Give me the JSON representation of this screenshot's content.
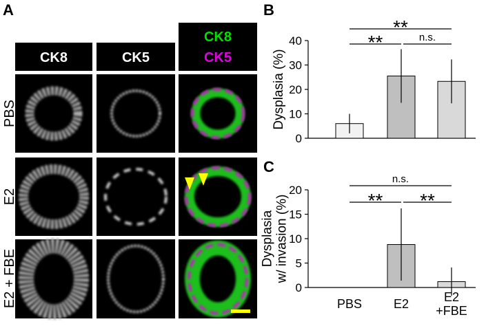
{
  "panel_a": {
    "label": "A",
    "columns": [
      "CK8",
      "CK5"
    ],
    "merge": [
      "CK8",
      "CK5"
    ],
    "rows": [
      "PBS",
      "E2",
      "E2 + FBE"
    ]
  },
  "chart_data": [
    {
      "type": "bar",
      "label": "B",
      "ylabel": "Dysplasia (%)",
      "categories": [
        null,
        null,
        null
      ],
      "values": [
        6,
        25.5,
        23.3
      ],
      "errors": [
        4,
        11,
        9
      ],
      "colors": [
        "#f2f2f2",
        "#bfbfbf",
        "#d9d9d9"
      ],
      "ylim": [
        0,
        40
      ],
      "yticks": [
        0,
        10,
        20,
        30,
        40
      ],
      "annotations": [
        "**",
        "**",
        "n.s."
      ]
    },
    {
      "type": "bar",
      "label": "C",
      "ylabel": "Dysplasia\nw/ invasion (%)",
      "categories": [
        "PBS",
        "E2",
        "E2\n+FBE"
      ],
      "values": [
        0,
        8.8,
        1.2
      ],
      "errors": [
        0,
        7.4,
        2.9
      ],
      "colors": [
        "#f2f2f2",
        "#bfbfbf",
        "#d9d9d9"
      ],
      "ylim": [
        0,
        20
      ],
      "yticks": [
        0,
        5,
        10,
        15,
        20
      ],
      "annotations": [
        "n.s.",
        "**",
        "**"
      ]
    }
  ]
}
